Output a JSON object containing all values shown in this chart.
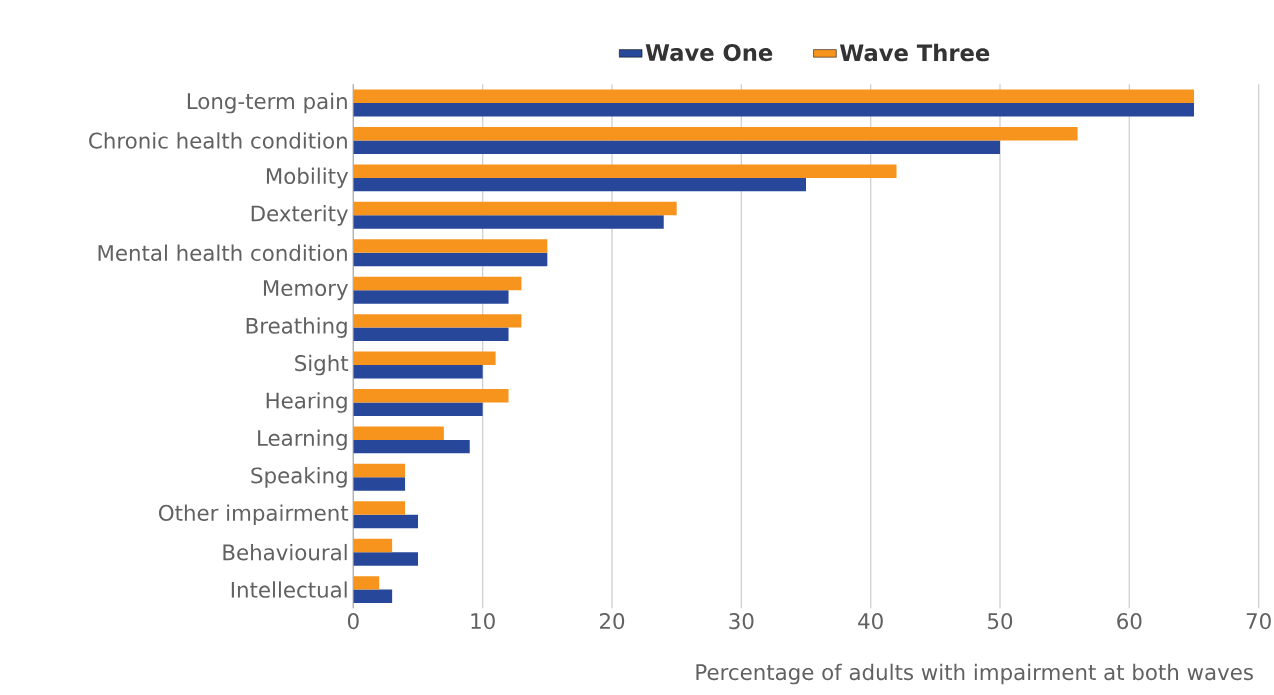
{
  "chart_data": {
    "type": "bar",
    "orientation": "horizontal",
    "xlabel": "Percentage of adults with impairment at both waves",
    "categories": [
      "Long-term pain",
      "Chronic health condition",
      "Mobility",
      "Dexterity",
      "Mental health condition",
      "Memory",
      "Breathing",
      "Sight",
      "Hearing",
      "Learning",
      "Speaking",
      "Other impairment",
      "Behavioural",
      "Intellectual"
    ],
    "series": [
      {
        "name": "Wave One",
        "color": "#27479a",
        "values": [
          65,
          50,
          35,
          24,
          15,
          12,
          12,
          10,
          10,
          9,
          4,
          5,
          5,
          3
        ]
      },
      {
        "name": "Wave Three",
        "color": "#f7941d",
        "values": [
          65,
          56,
          42,
          25,
          15,
          13,
          13,
          11,
          12,
          7,
          4,
          4,
          3,
          2
        ]
      }
    ],
    "xlim": [
      0,
      70
    ],
    "xticks": [
      0,
      10,
      20,
      30,
      40,
      50,
      60,
      70
    ],
    "grid": "x",
    "legend": "top"
  }
}
